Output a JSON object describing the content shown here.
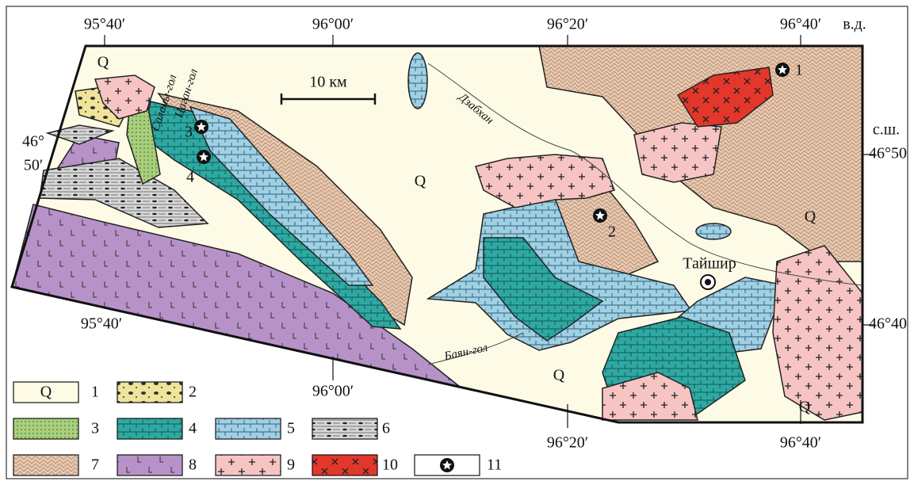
{
  "coordinates": {
    "top": [
      "95°40′",
      "96°00′",
      "96°20′",
      "96°40′",
      "в.д."
    ],
    "bottom": [
      "95°40′",
      "96°00′",
      "96°20′",
      "96°40′"
    ],
    "left": [
      "46°",
      "50′"
    ],
    "right": [
      "с.ш.",
      "46°50",
      "46°40"
    ]
  },
  "places": [
    "Саланы-гол",
    "Цаган-гол",
    "Дзабхан",
    "Баян-гол",
    "Тайшир"
  ],
  "scale": "10 км",
  "q_labels": [
    "Q",
    "Q",
    "Q",
    "Q",
    "Q"
  ],
  "sites": [
    "1",
    "2",
    "3",
    "4"
  ],
  "legend": [
    {
      "number": "1",
      "symbol": "Q"
    },
    {
      "number": "2"
    },
    {
      "number": "3"
    },
    {
      "number": "4"
    },
    {
      "number": "5"
    },
    {
      "number": "6"
    },
    {
      "number": "7"
    },
    {
      "number": "8"
    },
    {
      "number": "9"
    },
    {
      "number": "10"
    },
    {
      "number": "11"
    }
  ]
}
